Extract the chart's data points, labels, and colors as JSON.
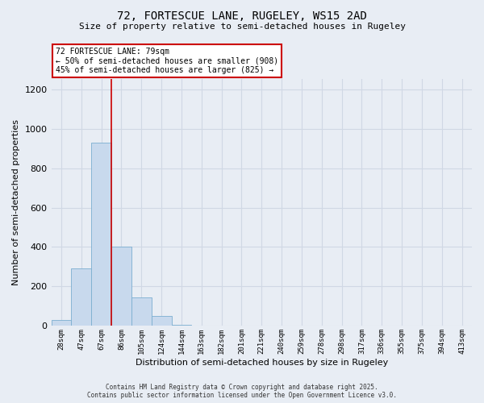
{
  "title_line1": "72, FORTESCUE LANE, RUGELEY, WS15 2AD",
  "title_line2": "Size of property relative to semi-detached houses in Rugeley",
  "xlabel": "Distribution of semi-detached houses by size in Rugeley",
  "ylabel": "Number of semi-detached properties",
  "bar_color": "#c8d9ed",
  "bar_edge_color": "#7baed0",
  "bin_labels": [
    "28sqm",
    "47sqm",
    "67sqm",
    "86sqm",
    "105sqm",
    "124sqm",
    "144sqm",
    "163sqm",
    "182sqm",
    "201sqm",
    "221sqm",
    "240sqm",
    "259sqm",
    "278sqm",
    "298sqm",
    "317sqm",
    "336sqm",
    "355sqm",
    "375sqm",
    "394sqm",
    "413sqm"
  ],
  "bar_heights": [
    30,
    290,
    930,
    400,
    145,
    50,
    5,
    0,
    0,
    0,
    0,
    0,
    0,
    0,
    0,
    0,
    0,
    0,
    0,
    0,
    0
  ],
  "ylim": [
    0,
    1250
  ],
  "yticks": [
    0,
    200,
    400,
    600,
    800,
    1000,
    1200
  ],
  "vline_x": 2.5,
  "annotation_title": "72 FORTESCUE LANE: 79sqm",
  "annotation_line1": "← 50% of semi-detached houses are smaller (908)",
  "annotation_line2": "45% of semi-detached houses are larger (825) →",
  "annotation_box_color": "#ffffff",
  "annotation_box_edge": "#cc0000",
  "vline_color": "#cc0000",
  "grid_color": "#d0d8e4",
  "bg_color": "#e8edf4",
  "footer_line1": "Contains HM Land Registry data © Crown copyright and database right 2025.",
  "footer_line2": "Contains public sector information licensed under the Open Government Licence v3.0."
}
